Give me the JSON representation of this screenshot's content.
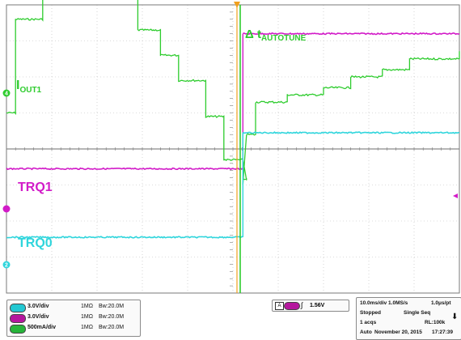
{
  "labels": {
    "iout1_main": "I",
    "iout1_sub": "OUT1",
    "delta_main": "Δ t",
    "delta_sub": "AUTOTUNE",
    "trq1": "TRQ1",
    "trq0": "TRQ0"
  },
  "markers": {
    "ch4": "4",
    "ch2": "2"
  },
  "colors": {
    "green": "#2ecc2e",
    "magenta": "#d21bc8",
    "cyan": "#2fd5dc",
    "orange": "#f0a01e",
    "grid": "#9a9a9a"
  },
  "channels": [
    {
      "badge_color": "#23c8d2",
      "scale": "3.0V/div",
      "impedance": "1MΩ",
      "bw": "Bw:20.0M"
    },
    {
      "badge_color": "#b5179e",
      "scale": "3.0V/div",
      "impedance": "1MΩ",
      "bw": "Bw:20.0M"
    },
    {
      "badge_color": "#27b43a",
      "scale": "500mA/div",
      "impedance": "1MΩ",
      "bw": "Bw:20.0M"
    }
  ],
  "trigger": {
    "source": "A",
    "slope": "∫",
    "level": "1.56V"
  },
  "acquisition": {
    "timebase": "10.0ms/div 1.0MS/s",
    "resolution": "1.0μs/pt",
    "state": "Stopped",
    "mode": "Single Seq",
    "acqs": "1 acqs",
    "record_length": "RL:100k",
    "auto": "Auto",
    "date": "November 20, 2015",
    "time": "17:27:39",
    "arrow": "⬇"
  },
  "traces": {
    "green_levels": [
      {
        "t": 0.0,
        "level": 1.0
      },
      {
        "t": 0.02,
        "level": 3.6
      },
      {
        "t": 0.08,
        "level": 4.2
      },
      {
        "t": 0.15,
        "level": 4.6
      },
      {
        "t": 0.23,
        "level": 4.2
      },
      {
        "t": 0.29,
        "level": 3.3
      },
      {
        "t": 0.34,
        "level": 2.6
      },
      {
        "t": 0.38,
        "level": 1.9
      },
      {
        "t": 0.44,
        "level": 0.9
      },
      {
        "t": 0.48,
        "level": -0.3
      },
      {
        "t": 0.53,
        "level": -0.85
      }
    ],
    "green_after_rise": [
      {
        "t": 0.522,
        "level": -1.0
      },
      {
        "t": 0.53,
        "level": 0.4
      },
      {
        "t": 0.55,
        "level": 1.3
      },
      {
        "t": 0.62,
        "level": 1.5
      },
      {
        "t": 0.7,
        "level": 1.7
      },
      {
        "t": 0.76,
        "level": 2.0
      },
      {
        "t": 0.83,
        "level": 2.2
      },
      {
        "t": 0.89,
        "level": 2.5
      },
      {
        "t": 1.0,
        "level": 2.7
      }
    ],
    "magenta": {
      "before": -0.55,
      "after": 3.2,
      "switch_t": 0.522
    },
    "cyan": {
      "before": -2.45,
      "after": 0.45,
      "switch_t": 0.522
    }
  }
}
